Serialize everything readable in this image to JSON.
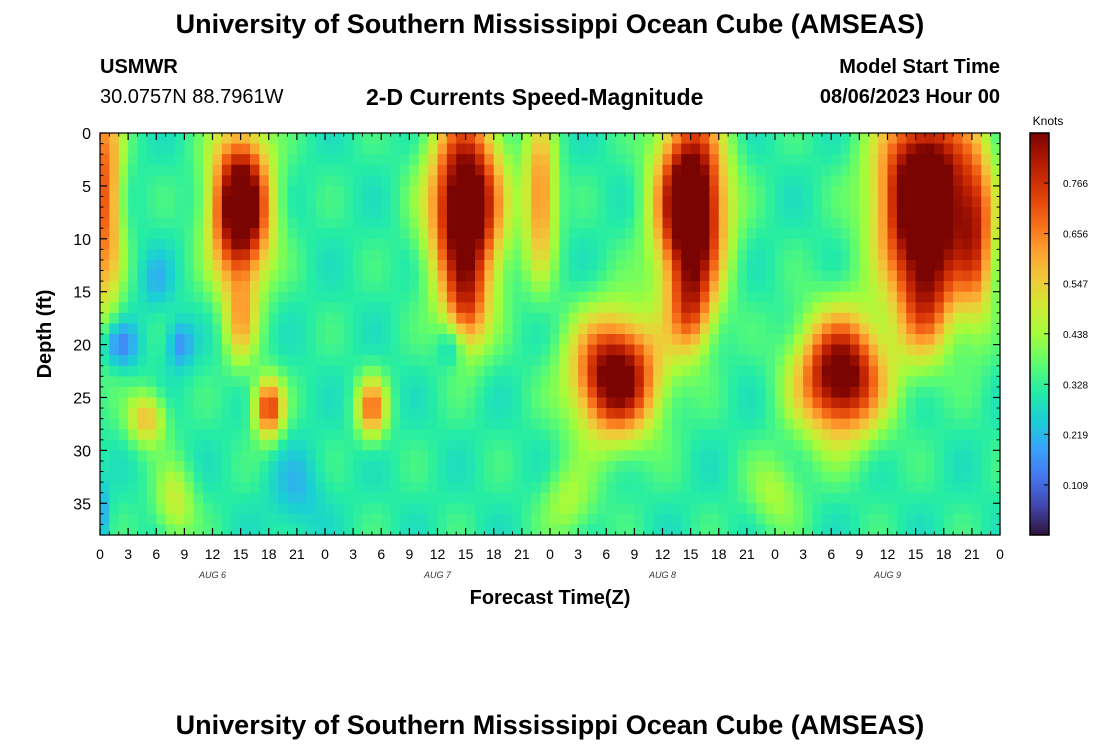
{
  "header": {
    "title": "University of Southern Mississippi Ocean Cube (AMSEAS)",
    "station_id": "USMWR",
    "station_coords": "30.0757N  88.7961W",
    "product": "2-D Currents Speed-Magnitude",
    "model_start_label": "Model Start Time",
    "model_start_value": "08/06/2023 Hour 00"
  },
  "footer": {
    "title": "University of Southern Mississippi Ocean Cube (AMSEAS)"
  },
  "chart_data": {
    "type": "heatmap",
    "title": "2-D Currents Speed-Magnitude",
    "xlabel": "Forecast Time(Z)",
    "ylabel": "Depth (ft)",
    "x_tick_labels": [
      "0",
      "3",
      "6",
      "9",
      "12",
      "15",
      "18",
      "21",
      "0",
      "3",
      "6",
      "9",
      "12",
      "15",
      "18",
      "21",
      "0",
      "3",
      "6",
      "9",
      "12",
      "15",
      "18",
      "21",
      "0",
      "3",
      "6",
      "9",
      "12",
      "15",
      "18",
      "21",
      "0"
    ],
    "x_range_hours": [
      0,
      96
    ],
    "day_labels": [
      "AUG 6",
      "AUG 7",
      "AUG 8",
      "AUG 9"
    ],
    "y_ticks": [
      0,
      5,
      10,
      15,
      20,
      25,
      30,
      35
    ],
    "y_range_ft": [
      0,
      38
    ],
    "y_inverted": true,
    "colorbar": {
      "label": "Knots",
      "ticks": [
        0.109,
        0.219,
        0.328,
        0.438,
        0.547,
        0.656,
        0.766
      ],
      "range": [
        0.0,
        0.875
      ]
    },
    "colormap": [
      "#30123b",
      "#4145ab",
      "#4675ed",
      "#39a2fc",
      "#1bcfd4",
      "#24eca6",
      "#61fc6c",
      "#a4fc3b",
      "#d1e834",
      "#f3c63a",
      "#fe9b2d",
      "#f36315",
      "#d93806",
      "#b11901",
      "#7a0402"
    ],
    "features": [
      {
        "t": 15,
        "d": 7,
        "st": 2.2,
        "sd": 5,
        "v": 0.82
      },
      {
        "t": 15,
        "d": 18,
        "st": 1.2,
        "sd": 3,
        "v": 0.25
      },
      {
        "t": 39,
        "d": 7,
        "st": 2.6,
        "sd": 6,
        "v": 0.82
      },
      {
        "t": 39,
        "d": 17,
        "st": 1.6,
        "sd": 3,
        "v": 0.3
      },
      {
        "t": 63,
        "d": 7,
        "st": 2.5,
        "sd": 6,
        "v": 0.88
      },
      {
        "t": 63,
        "d": 17,
        "st": 1.6,
        "sd": 3,
        "v": 0.3
      },
      {
        "t": 88,
        "d": 6,
        "st": 3.5,
        "sd": 6,
        "v": 0.88
      },
      {
        "t": 88,
        "d": 16,
        "st": 2.2,
        "sd": 4,
        "v": 0.35
      },
      {
        "t": 55,
        "d": 23,
        "st": 3.2,
        "sd": 4,
        "v": 0.72
      },
      {
        "t": 79,
        "d": 23,
        "st": 3.2,
        "sd": 4,
        "v": 0.72
      },
      {
        "t": 18,
        "d": 26,
        "st": 1.1,
        "sd": 2,
        "v": 0.5
      },
      {
        "t": 29,
        "d": 26,
        "st": 1.1,
        "sd": 2,
        "v": 0.4
      },
      {
        "t": 5,
        "d": 27,
        "st": 1.4,
        "sd": 1.8,
        "v": 0.3
      },
      {
        "t": 0.5,
        "d": 6,
        "st": 1.3,
        "sd": 8,
        "v": 0.45
      },
      {
        "t": 47,
        "d": 6,
        "st": 1.2,
        "sd": 5,
        "v": 0.4
      },
      {
        "t": 93.5,
        "d": 10,
        "st": 1.4,
        "sd": 6,
        "v": 0.35
      },
      {
        "t": 8,
        "d": 35,
        "st": 1.5,
        "sd": 2.5,
        "v": 0.2
      },
      {
        "t": 50,
        "d": 35,
        "st": 2,
        "sd": 2.5,
        "v": 0.15
      },
      {
        "t": 72,
        "d": 34,
        "st": 2,
        "sd": 2.5,
        "v": 0.15
      },
      {
        "t": 2,
        "d": 20,
        "st": 1.4,
        "sd": 1.6,
        "v": -0.2
      },
      {
        "t": 8.5,
        "d": 20,
        "st": 1,
        "sd": 1.6,
        "v": -0.18
      },
      {
        "t": 37.5,
        "d": 20,
        "st": 1,
        "sd": 1.5,
        "v": -0.15
      },
      {
        "t": 6,
        "d": 14,
        "st": 1.2,
        "sd": 2,
        "v": -0.1
      },
      {
        "t": 21,
        "d": 34,
        "st": 2,
        "sd": 3,
        "v": -0.1
      },
      {
        "t": 0,
        "d": 36,
        "st": 0.7,
        "sd": 2,
        "v": -0.15
      }
    ]
  }
}
